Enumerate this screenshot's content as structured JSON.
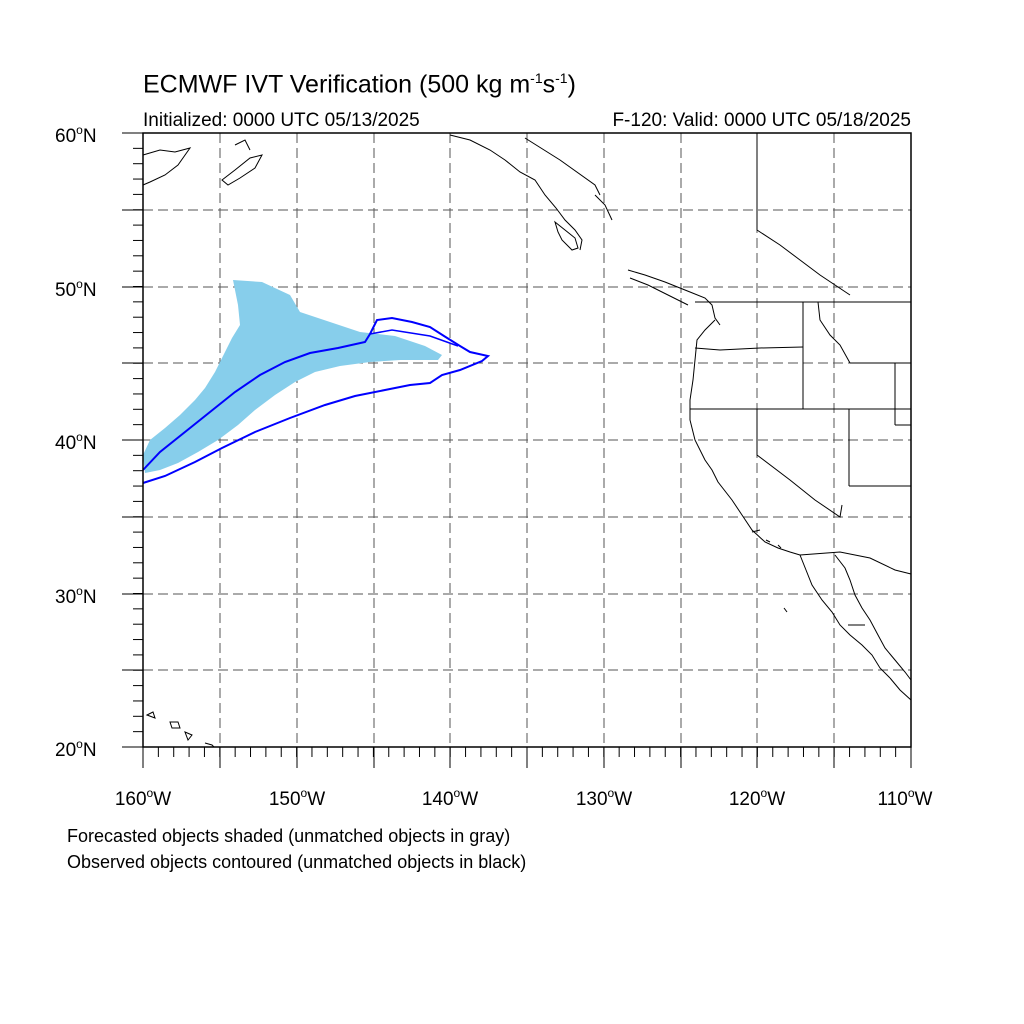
{
  "title": {
    "prefix": "ECMWF IVT Verification (500 kg m",
    "exp1": "-1",
    "mid": "s",
    "exp2": "-1",
    "suffix": ")"
  },
  "initialized": "Initialized: 0000 UTC 05/13/2025",
  "valid": "F-120: Valid: 0000 UTC 05/18/2025",
  "caption_forecast": "Forecasted objects shaded (unmatched objects in gray)",
  "caption_observed": "Observed objects contoured (unmatched objects in black)",
  "map": {
    "lon_range": [
      -160,
      -110
    ],
    "lat_range": [
      20,
      60
    ],
    "lat_labels": [
      "60",
      "50",
      "40",
      "30",
      "20"
    ],
    "lat_suffix": "N",
    "lon_labels": [
      "160",
      "150",
      "140",
      "130",
      "120",
      "110"
    ],
    "lon_suffix": "W",
    "degree_symbol": "o",
    "grid": "dashed",
    "colors": {
      "forecast_fill": "#87ceeb",
      "observed_contour": "#0000ff",
      "coastline": "#000000",
      "grid": "#555555"
    }
  }
}
